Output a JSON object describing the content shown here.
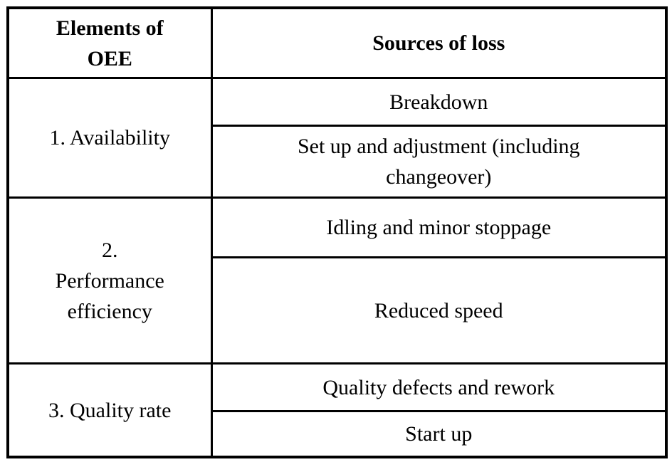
{
  "table": {
    "headers": {
      "elements": "Elements of\nOEE",
      "sources": "Sources of loss"
    },
    "groups": [
      {
        "element": "1. Availability",
        "losses": [
          "Breakdown",
          "Set up and adjustment (including\nchangeover)"
        ]
      },
      {
        "element": "2.\nPerformance\nefficiency",
        "losses": [
          "Idling and minor stoppage",
          "Reduced speed"
        ]
      },
      {
        "element": "3. Quality rate",
        "losses": [
          "Quality defects and rework",
          "Start up"
        ]
      }
    ],
    "style": {
      "border_color": "#000000",
      "text_color": "#000000",
      "background": "#ffffff"
    }
  }
}
